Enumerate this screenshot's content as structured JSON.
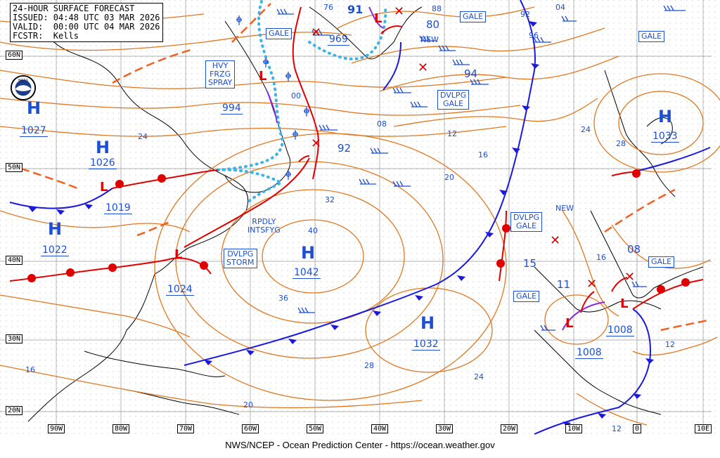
{
  "header": {
    "line1": "24-HOUR SURFACE FORECAST",
    "line2": "ISSUED: 04:48 UTC 03 MAR 2026",
    "line3": "VALID:  00:00 UTC 04 MAR 2026",
    "line4": "FCSTR:  Kells"
  },
  "footer": "NWS/NCEP - Ocean Prediction Center - https://ocean.weather.gov",
  "latitudes": [
    "60N",
    "50N",
    "40N",
    "30N",
    "20N"
  ],
  "longitudes": [
    "90W",
    "80W",
    "70W",
    "60W",
    "50W",
    "40W",
    "30W",
    "20W",
    "10W",
    "0",
    "10E"
  ],
  "highs": [
    {
      "symbol": "H",
      "pressure": "1027"
    },
    {
      "symbol": "H",
      "pressure": "1026"
    },
    {
      "symbol": "H",
      "pressure": "1022"
    },
    {
      "symbol": "H",
      "pressure": "1042"
    },
    {
      "symbol": "H",
      "pressure": "1032"
    },
    {
      "symbol": "H",
      "pressure": "1033"
    }
  ],
  "lows": [
    {
      "symbol": "L",
      "pressure": "994"
    },
    {
      "symbol": "L",
      "pressure": "969"
    },
    {
      "symbol": "L",
      "pressure": "1019"
    },
    {
      "symbol": "L",
      "pressure": "1024"
    },
    {
      "symbol": "L",
      "pressure": "1008"
    },
    {
      "symbol": "L",
      "pressure": "1008"
    }
  ],
  "other_pressures": [
    "91",
    "80",
    "76",
    "88",
    "92",
    "94",
    "11",
    "15",
    "08"
  ],
  "warnings": [
    "GALE",
    "GALE",
    "GALE",
    "GALE",
    "GALE",
    "HVY\nFRZG\nSPRAY",
    "DVLPG\nGALE",
    "DVLPG\nGALE",
    "DVLPG\nSTORM"
  ],
  "text_notes": [
    "NEW",
    "NEW",
    "RPDLY\nINTSFYG"
  ],
  "isobar_labels": [
    "24",
    "00",
    "08",
    "12",
    "16",
    "20",
    "32",
    "40",
    "36",
    "28",
    "24",
    "20",
    "16",
    "96",
    "92",
    "04",
    "24",
    "28",
    "16",
    "12",
    "12"
  ],
  "colors": {
    "isobar": "#e07820",
    "cold_front": "#1a1adc",
    "warm_front": "#e00000",
    "occluded_front": "#8a2be2",
    "ice_edge": "#3cb4e6",
    "text": "#1a4fd6",
    "coast": "#000000"
  }
}
